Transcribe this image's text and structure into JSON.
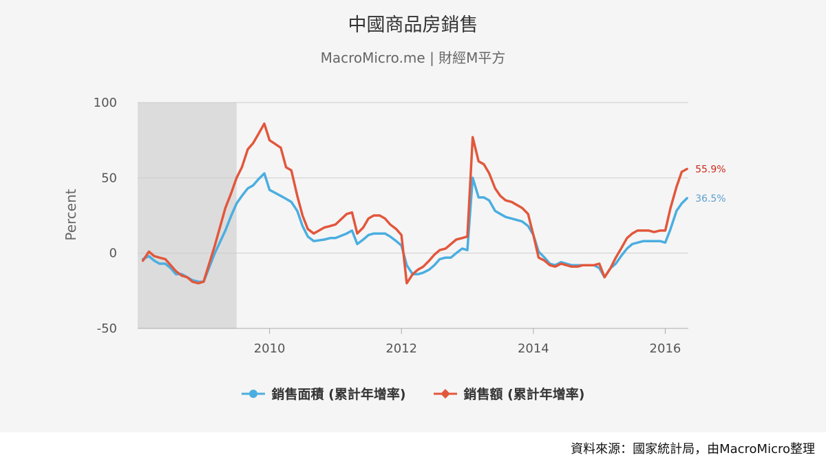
{
  "title": "中國商品房銷售",
  "subtitle": "MacroMicro.me | 財經M平方",
  "footer": "資料來源：國家統計局，由MacroMicro整理",
  "chart_data": {
    "type": "line",
    "title": "中國商品房銷售",
    "subtitle": "MacroMicro.me | 財經M平方",
    "ylabel": "Percent",
    "xlabel": "",
    "ylim": [
      -50,
      100
    ],
    "yticks": [
      -50,
      0,
      50,
      100
    ],
    "xlim": [
      2008.0,
      2016.35
    ],
    "xticks": [
      2010,
      2012,
      2014,
      2016
    ],
    "grid": true,
    "legend": "bottom-center",
    "shaded_region": {
      "x_start": 2008.0,
      "x_end": 2009.5,
      "color": "#dcdcdc"
    },
    "series": [
      {
        "name": "銷售面積 (累計年增率)",
        "color": "#4aaee0",
        "marker": "circle",
        "end_label": "36.5%",
        "points": [
          [
            2008.08,
            -4
          ],
          [
            2008.17,
            -2
          ],
          [
            2008.25,
            -5
          ],
          [
            2008.33,
            -7
          ],
          [
            2008.42,
            -7
          ],
          [
            2008.5,
            -10
          ],
          [
            2008.58,
            -14
          ],
          [
            2008.67,
            -14
          ],
          [
            2008.75,
            -16
          ],
          [
            2008.83,
            -18
          ],
          [
            2008.92,
            -19
          ],
          [
            2009.0,
            -19
          ],
          [
            2009.17,
            0
          ],
          [
            2009.33,
            15
          ],
          [
            2009.42,
            25
          ],
          [
            2009.5,
            33
          ],
          [
            2009.58,
            38
          ],
          [
            2009.67,
            43
          ],
          [
            2009.75,
            45
          ],
          [
            2009.83,
            49
          ],
          [
            2009.92,
            53
          ],
          [
            2010.0,
            42
          ],
          [
            2010.17,
            38
          ],
          [
            2010.25,
            36
          ],
          [
            2010.33,
            34
          ],
          [
            2010.42,
            28
          ],
          [
            2010.5,
            18
          ],
          [
            2010.58,
            11
          ],
          [
            2010.67,
            8
          ],
          [
            2010.83,
            9
          ],
          [
            2010.92,
            10
          ],
          [
            2011.0,
            10
          ],
          [
            2011.17,
            13
          ],
          [
            2011.25,
            15
          ],
          [
            2011.33,
            6
          ],
          [
            2011.42,
            9
          ],
          [
            2011.5,
            12
          ],
          [
            2011.58,
            13
          ],
          [
            2011.67,
            13
          ],
          [
            2011.75,
            13
          ],
          [
            2011.83,
            11
          ],
          [
            2011.92,
            8
          ],
          [
            2012.0,
            5
          ],
          [
            2012.08,
            -8
          ],
          [
            2012.17,
            -14
          ],
          [
            2012.25,
            -14
          ],
          [
            2012.33,
            -13
          ],
          [
            2012.42,
            -11
          ],
          [
            2012.5,
            -8
          ],
          [
            2012.58,
            -4
          ],
          [
            2012.67,
            -3
          ],
          [
            2012.75,
            -3
          ],
          [
            2012.83,
            0
          ],
          [
            2012.92,
            3
          ],
          [
            2013.0,
            2
          ],
          [
            2013.08,
            50
          ],
          [
            2013.17,
            37
          ],
          [
            2013.25,
            37
          ],
          [
            2013.33,
            35
          ],
          [
            2013.42,
            28
          ],
          [
            2013.5,
            26
          ],
          [
            2013.58,
            24
          ],
          [
            2013.67,
            23
          ],
          [
            2013.75,
            22
          ],
          [
            2013.83,
            21
          ],
          [
            2013.92,
            18
          ],
          [
            2014.0,
            12
          ],
          [
            2014.08,
            1
          ],
          [
            2014.17,
            -3
          ],
          [
            2014.25,
            -7
          ],
          [
            2014.33,
            -8
          ],
          [
            2014.42,
            -6
          ],
          [
            2014.5,
            -7
          ],
          [
            2014.58,
            -8
          ],
          [
            2014.67,
            -8
          ],
          [
            2014.75,
            -8
          ],
          [
            2014.83,
            -8
          ],
          [
            2014.92,
            -8
          ],
          [
            2015.0,
            -10
          ],
          [
            2015.08,
            -16
          ],
          [
            2015.17,
            -10
          ],
          [
            2015.25,
            -7
          ],
          [
            2015.33,
            -2
          ],
          [
            2015.42,
            3
          ],
          [
            2015.5,
            6
          ],
          [
            2015.58,
            7
          ],
          [
            2015.67,
            8
          ],
          [
            2015.75,
            8
          ],
          [
            2015.83,
            8
          ],
          [
            2015.92,
            8
          ],
          [
            2016.0,
            7
          ],
          [
            2016.08,
            16
          ],
          [
            2016.17,
            28
          ],
          [
            2016.25,
            33
          ],
          [
            2016.33,
            36.5
          ]
        ]
      },
      {
        "name": "銷售額 (累計年增率)",
        "color": "#e2573c",
        "marker": "diamond",
        "end_label": "55.9%",
        "points": [
          [
            2008.08,
            -5
          ],
          [
            2008.17,
            1
          ],
          [
            2008.25,
            -2
          ],
          [
            2008.33,
            -3
          ],
          [
            2008.42,
            -4
          ],
          [
            2008.5,
            -8
          ],
          [
            2008.58,
            -12
          ],
          [
            2008.67,
            -15
          ],
          [
            2008.75,
            -16
          ],
          [
            2008.83,
            -19
          ],
          [
            2008.92,
            -20
          ],
          [
            2009.0,
            -19
          ],
          [
            2009.17,
            5
          ],
          [
            2009.33,
            30
          ],
          [
            2009.42,
            40
          ],
          [
            2009.5,
            50
          ],
          [
            2009.58,
            57
          ],
          [
            2009.67,
            69
          ],
          [
            2009.75,
            73
          ],
          [
            2009.83,
            79
          ],
          [
            2009.92,
            86
          ],
          [
            2010.0,
            75
          ],
          [
            2010.17,
            70
          ],
          [
            2010.25,
            57
          ],
          [
            2010.33,
            55
          ],
          [
            2010.42,
            38
          ],
          [
            2010.5,
            25
          ],
          [
            2010.58,
            16
          ],
          [
            2010.67,
            13
          ],
          [
            2010.83,
            17
          ],
          [
            2010.92,
            18
          ],
          [
            2011.0,
            19
          ],
          [
            2011.17,
            26
          ],
          [
            2011.25,
            27
          ],
          [
            2011.33,
            13
          ],
          [
            2011.42,
            17
          ],
          [
            2011.5,
            23
          ],
          [
            2011.58,
            25
          ],
          [
            2011.67,
            25
          ],
          [
            2011.75,
            23
          ],
          [
            2011.83,
            19
          ],
          [
            2011.92,
            16
          ],
          [
            2012.0,
            12
          ],
          [
            2012.08,
            -20
          ],
          [
            2012.17,
            -14
          ],
          [
            2012.25,
            -11
          ],
          [
            2012.33,
            -9
          ],
          [
            2012.42,
            -5
          ],
          [
            2012.5,
            -1
          ],
          [
            2012.58,
            2
          ],
          [
            2012.67,
            3
          ],
          [
            2012.75,
            6
          ],
          [
            2012.83,
            9
          ],
          [
            2012.92,
            10
          ],
          [
            2013.0,
            11
          ],
          [
            2013.08,
            77
          ],
          [
            2013.17,
            61
          ],
          [
            2013.25,
            59
          ],
          [
            2013.33,
            53
          ],
          [
            2013.42,
            43
          ],
          [
            2013.5,
            38
          ],
          [
            2013.58,
            35
          ],
          [
            2013.67,
            34
          ],
          [
            2013.75,
            32
          ],
          [
            2013.83,
            30
          ],
          [
            2013.92,
            26
          ],
          [
            2014.0,
            12
          ],
          [
            2014.08,
            -3
          ],
          [
            2014.17,
            -5
          ],
          [
            2014.25,
            -8
          ],
          [
            2014.33,
            -9
          ],
          [
            2014.42,
            -7
          ],
          [
            2014.5,
            -8
          ],
          [
            2014.58,
            -9
          ],
          [
            2014.67,
            -9
          ],
          [
            2014.75,
            -8
          ],
          [
            2014.83,
            -8
          ],
          [
            2014.92,
            -8
          ],
          [
            2015.0,
            -7
          ],
          [
            2015.08,
            -16
          ],
          [
            2015.17,
            -10
          ],
          [
            2015.25,
            -3
          ],
          [
            2015.33,
            3
          ],
          [
            2015.42,
            10
          ],
          [
            2015.5,
            13
          ],
          [
            2015.58,
            15
          ],
          [
            2015.67,
            15
          ],
          [
            2015.75,
            15
          ],
          [
            2015.83,
            14
          ],
          [
            2015.92,
            15
          ],
          [
            2016.0,
            15
          ],
          [
            2016.08,
            30
          ],
          [
            2016.17,
            44
          ],
          [
            2016.25,
            54
          ],
          [
            2016.33,
            55.9
          ]
        ]
      }
    ]
  }
}
